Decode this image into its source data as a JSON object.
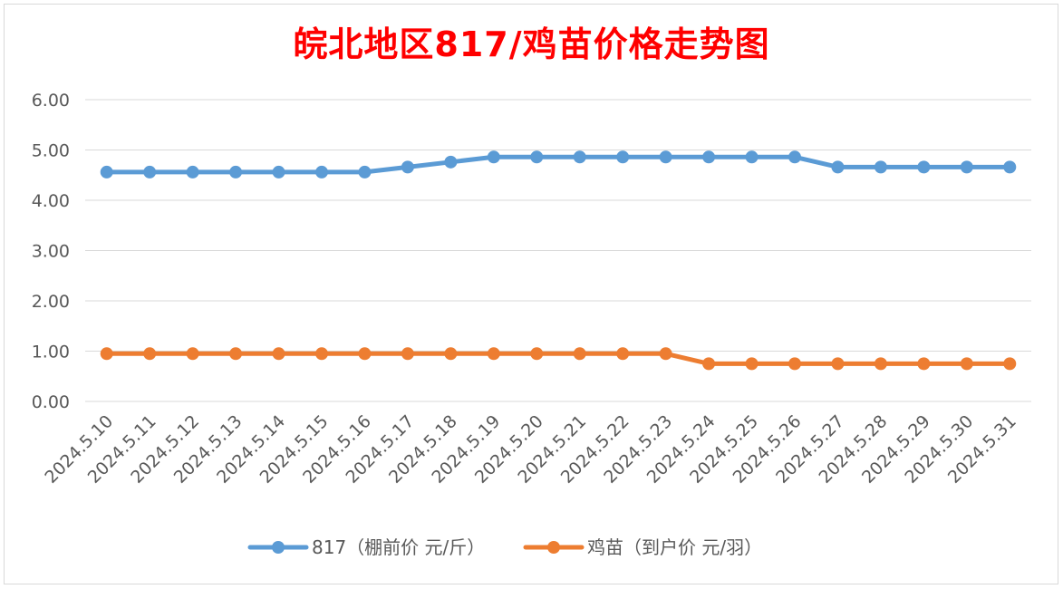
{
  "chart_data": {
    "type": "line",
    "title": "皖北地区817/鸡苗价格走势图",
    "x": [
      "2024.5.10",
      "2024.5.11",
      "2024.5.12",
      "2024.5.13",
      "2024.5.14",
      "2024.5.15",
      "2024.5.16",
      "2024.5.17",
      "2024.5.18",
      "2024.5.19",
      "2024.5.20",
      "2024.5.21",
      "2024.5.22",
      "2024.5.23",
      "2024.5.24",
      "2024.5.25",
      "2024.5.26",
      "2024.5.27",
      "2024.5.28",
      "2024.5.29",
      "2024.5.30",
      "2024.5.31"
    ],
    "series": [
      {
        "name": "817（棚前价 元/斤）",
        "color": "#5b9bd5",
        "values": [
          4.56,
          4.56,
          4.56,
          4.56,
          4.56,
          4.56,
          4.56,
          4.66,
          4.76,
          4.86,
          4.86,
          4.86,
          4.86,
          4.86,
          4.86,
          4.86,
          4.86,
          4.66,
          4.66,
          4.66,
          4.66,
          4.66
        ]
      },
      {
        "name": "鸡苗（到户价 元/羽）",
        "color": "#ed7d31",
        "values": [
          0.95,
          0.95,
          0.95,
          0.95,
          0.95,
          0.95,
          0.95,
          0.95,
          0.95,
          0.95,
          0.95,
          0.95,
          0.95,
          0.95,
          0.75,
          0.75,
          0.75,
          0.75,
          0.75,
          0.75,
          0.75,
          0.75
        ]
      }
    ],
    "yticks": [
      "0.00",
      "1.00",
      "2.00",
      "3.00",
      "4.00",
      "5.00",
      "6.00"
    ],
    "ylim": [
      0,
      6
    ],
    "grid": true,
    "legend": "bottom"
  }
}
